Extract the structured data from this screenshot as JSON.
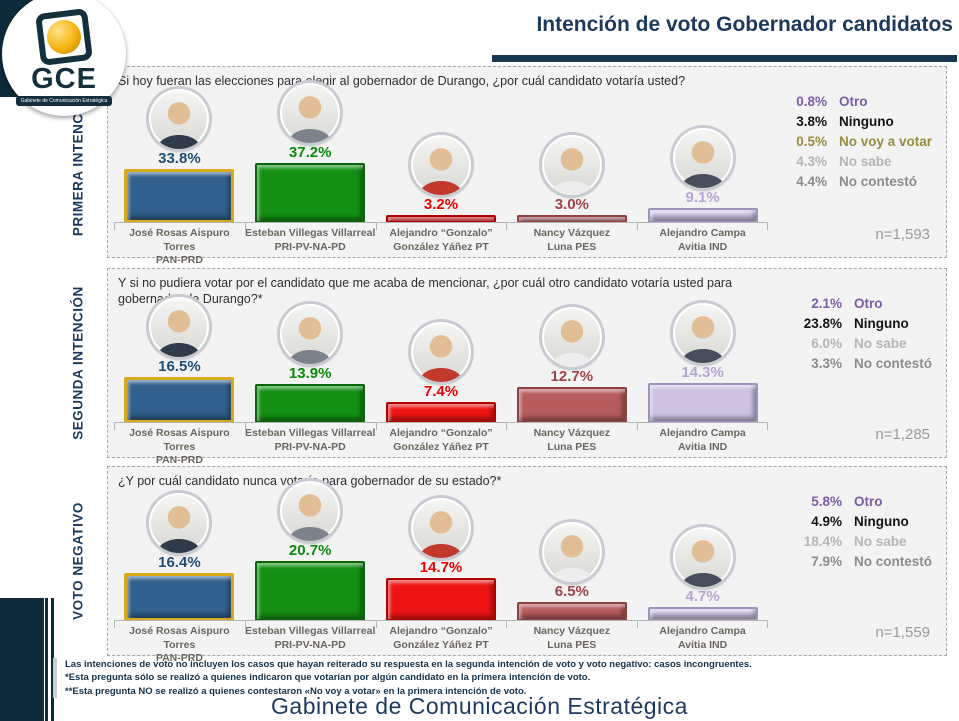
{
  "header": {
    "title": "Intención de voto Gobernador candidatos"
  },
  "logo": {
    "acronym": "GCE",
    "subtitle": "Gabinete de Comunicación Estratégica"
  },
  "colors": {
    "title_navy": "#1C3A5E",
    "accent_bar": "#16374E",
    "corner_dark": "#0D2B3B",
    "avatar_skin": "#E2BE96"
  },
  "candidates": [
    {
      "line1": "José Rosas Aispuro Torres",
      "line2": "PAN-PRD",
      "bar_fill": "#31608E",
      "bar_border": "#D9A91C",
      "pct_color": "#1F4E79",
      "shirt": "#2F3A4A"
    },
    {
      "line1": "Esteban Villegas Villarreal",
      "line2": "PRI-PV-NA-PD",
      "bar_fill": "#149014",
      "bar_border": "#0A640A",
      "pct_color": "#0B8A0B",
      "shirt": "#7D838C"
    },
    {
      "line1": "Alejandro “Gonzalo”",
      "line2": "González Yáñez PT",
      "bar_fill": "#EE1414",
      "bar_border": "#AF0000",
      "pct_color": "#F00000",
      "shirt": "#C23A2E"
    },
    {
      "line1": "Nancy Vázquez",
      "line2": "Luna PES",
      "bar_fill": "#B65C5C",
      "bar_border": "#8F4040",
      "pct_color": "#A04348",
      "shirt": "#EDEDED"
    },
    {
      "line1": "Alejandro Campa",
      "line2": "Avitia IND",
      "bar_fill": "#CDC2E2",
      "bar_border": "#9C92BC",
      "pct_color": "#B3A6D4",
      "shirt": "#474F5C"
    }
  ],
  "sections": [
    {
      "label": "PRIMERA INTENCIÓN",
      "question": "Si hoy fueran las elecciones para elegir al gobernador de Durango, ¿por cuál candidato votaría usted?",
      "values": [
        "33.8%",
        "37.2%",
        "3.2%",
        "3.0%",
        "9.1%"
      ],
      "stats": [
        {
          "value": "0.8%",
          "label": "Otro",
          "color": "#7B5EA7"
        },
        {
          "value": "3.8%",
          "label": "Ninguno",
          "color": "#141414"
        },
        {
          "value": "0.5%",
          "label": "No voy a votar",
          "color": "#978C3F"
        },
        {
          "value": "4.3%",
          "label": "No sabe",
          "color": "#B5B5B5"
        },
        {
          "value": "4.4%",
          "label": "No contestó",
          "color": "#8C8C8C"
        }
      ],
      "n": "n=1,593"
    },
    {
      "label": "SEGUNDA INTENCIÓN",
      "question": "Y si no pudiera votar por el candidato que me acaba de mencionar, ¿por cuál otro candidato votaría usted para gobernador de Durango?*",
      "values": [
        "16.5%",
        "13.9%",
        "7.4%",
        "12.7%",
        "14.3%"
      ],
      "stats": [
        {
          "value": "2.1%",
          "label": "Otro",
          "color": "#7B5EA7"
        },
        {
          "value": "23.8%",
          "label": "Ninguno",
          "color": "#141414"
        },
        {
          "value": "6.0%",
          "label": "No sabe",
          "color": "#B5B5B5"
        },
        {
          "value": "3.3%",
          "label": "No contestó",
          "color": "#8C8C8C"
        }
      ],
      "n": "n=1,285"
    },
    {
      "label": "VOTO NEGATIVO",
      "question": "¿Y por cuál candidato nunca votaría para gobernador de su estado?*",
      "values": [
        "16.4%",
        "20.7%",
        "14.7%",
        "6.5%",
        "4.7%"
      ],
      "stats": [
        {
          "value": "5.8%",
          "label": "Otro",
          "color": "#7B5EA7"
        },
        {
          "value": "4.9%",
          "label": "Ninguno",
          "color": "#141414"
        },
        {
          "value": "18.4%",
          "label": "No sabe",
          "color": "#B5B5B5"
        },
        {
          "value": "7.9%",
          "label": "No contestó",
          "color": "#8C8C8C"
        }
      ],
      "n": "n=1,559"
    }
  ],
  "footer": {
    "notes": [
      "Las intenciones de voto no incluyen los casos que hayan reiterado su respuesta en la segunda intención de voto y voto negativo: casos incongruentes.",
      "*Esta pregunta sólo se realizó a quienes indicaron que votarían por algún candidato en la primera intención de voto.",
      "**Esta pregunta NO se realizó a quienes contestaron «No voy a votar» en la primera intención de voto."
    ],
    "brand": "Gabinete de Comunicación Estratégica"
  },
  "chart_data": [
    {
      "type": "bar",
      "title": "Primera intención: Si hoy fueran las elecciones para elegir al gobernador de Durango, ¿por cuál candidato votaría usted?",
      "categories": [
        "José Rosas Aispuro Torres (PAN-PRD)",
        "Esteban Villegas Villarreal (PRI-PV-NA-PD)",
        "Alejandro “Gonzalo” González Yáñez (PT)",
        "Nancy Vázquez Luna (PES)",
        "Alejandro Campa Avitia (IND)"
      ],
      "values": [
        33.8,
        37.2,
        3.2,
        3.0,
        9.1
      ],
      "other_responses": {
        "Otro": 0.8,
        "Ninguno": 3.8,
        "No voy a votar": 0.5,
        "No sabe": 4.3,
        "No contestó": 4.4
      },
      "n": 1593,
      "unit": "%"
    },
    {
      "type": "bar",
      "title": "Segunda intención: Y si no pudiera votar por el candidato que me acaba de mencionar, ¿por cuál otro candidato votaría usted para gobernador de Durango?",
      "categories": [
        "José Rosas Aispuro Torres (PAN-PRD)",
        "Esteban Villegas Villarreal (PRI-PV-NA-PD)",
        "Alejandro “Gonzalo” González Yáñez (PT)",
        "Nancy Vázquez Luna (PES)",
        "Alejandro Campa Avitia (IND)"
      ],
      "values": [
        16.5,
        13.9,
        7.4,
        12.7,
        14.3
      ],
      "other_responses": {
        "Otro": 2.1,
        "Ninguno": 23.8,
        "No sabe": 6.0,
        "No contestó": 3.3
      },
      "n": 1285,
      "unit": "%"
    },
    {
      "type": "bar",
      "title": "Voto negativo: ¿Y por cuál candidato nunca votaría para gobernador de su estado?",
      "categories": [
        "José Rosas Aispuro Torres (PAN-PRD)",
        "Esteban Villegas Villarreal (PRI-PV-NA-PD)",
        "Alejandro “Gonzalo” González Yáñez (PT)",
        "Nancy Vázquez Luna (PES)",
        "Alejandro Campa Avitia (IND)"
      ],
      "values": [
        16.4,
        20.7,
        14.7,
        6.5,
        4.7
      ],
      "other_responses": {
        "Otro": 5.8,
        "Ninguno": 4.9,
        "No sabe": 18.4,
        "No contestó": 7.9
      },
      "n": 1559,
      "unit": "%"
    }
  ]
}
